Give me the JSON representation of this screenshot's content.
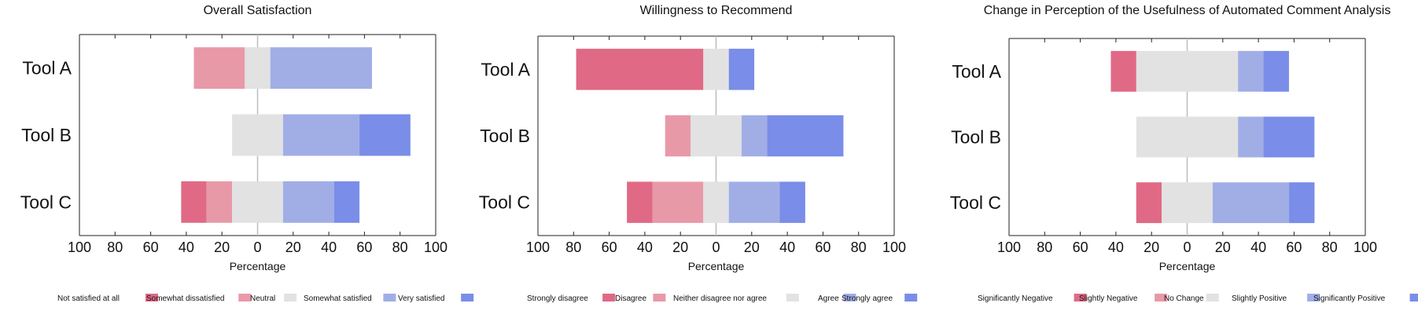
{
  "colors": {
    "strong_negative": "#e06a86",
    "negative": "#e899a8",
    "neutral": "#e2e2e2",
    "positive": "#a1aee6",
    "strong_positive": "#7a8de8"
  },
  "chart_data": [
    {
      "type": "bar",
      "orientation": "horizontal-diverging-stacked",
      "title": "Overall Satisfaction",
      "xlabel": "Percentage",
      "xlim": [
        -100,
        100
      ],
      "xtick_labels": [
        "100",
        "80",
        "60",
        "40",
        "20",
        "0",
        "20",
        "40",
        "60",
        "80",
        "100"
      ],
      "categories": [
        "Tool A",
        "Tool B",
        "Tool C"
      ],
      "series": [
        {
          "name": "Not satisfied at all",
          "values": [
            0,
            0,
            14.3
          ]
        },
        {
          "name": "Somewhat dissatisfied",
          "values": [
            28.6,
            0,
            14.3
          ]
        },
        {
          "name": "Neutral",
          "values": [
            14.3,
            28.6,
            28.6
          ]
        },
        {
          "name": "Somewhat satisfied",
          "values": [
            57.1,
            42.9,
            28.6
          ]
        },
        {
          "name": "Very satisfied",
          "values": [
            0,
            28.6,
            14.3
          ]
        }
      ],
      "legend": {
        "position": "bottom"
      }
    },
    {
      "type": "bar",
      "orientation": "horizontal-diverging-stacked",
      "title": "Willingness to Recommend",
      "xlabel": "Percentage",
      "xlim": [
        -100,
        100
      ],
      "xtick_labels": [
        "100",
        "80",
        "60",
        "40",
        "20",
        "0",
        "20",
        "40",
        "60",
        "80",
        "100"
      ],
      "categories": [
        "Tool A",
        "Tool B",
        "Tool C"
      ],
      "series": [
        {
          "name": "Strongly disagree",
          "values": [
            71.4,
            0,
            14.3
          ]
        },
        {
          "name": "Disagree",
          "values": [
            0,
            14.3,
            28.6
          ]
        },
        {
          "name": "Neither disagree nor agree",
          "values": [
            14.3,
            28.6,
            14.3
          ]
        },
        {
          "name": "Agree",
          "values": [
            0,
            14.3,
            28.6
          ]
        },
        {
          "name": "Strongly agree",
          "values": [
            14.3,
            42.9,
            14.3
          ]
        }
      ],
      "legend": {
        "position": "bottom"
      }
    },
    {
      "type": "bar",
      "orientation": "horizontal-diverging-stacked",
      "title": "Change in Perception of the Usefulness of Automated Comment Analysis",
      "xlabel": "Percentage",
      "xlim": [
        -100,
        100
      ],
      "xtick_labels": [
        "100",
        "80",
        "60",
        "40",
        "20",
        "0",
        "20",
        "40",
        "60",
        "80",
        "100"
      ],
      "categories": [
        "Tool A",
        "Tool B",
        "Tool C"
      ],
      "series": [
        {
          "name": "Significantly Negative",
          "values": [
            14.3,
            0,
            14.3
          ]
        },
        {
          "name": "Slightly Negative",
          "values": [
            0,
            0,
            0
          ]
        },
        {
          "name": "No Change",
          "values": [
            57.1,
            57.1,
            28.6
          ]
        },
        {
          "name": "Slightly Positive",
          "values": [
            14.3,
            14.3,
            42.9
          ]
        },
        {
          "name": "Significantly Positive",
          "values": [
            14.3,
            28.6,
            14.3
          ]
        }
      ],
      "legend": {
        "position": "bottom"
      }
    }
  ]
}
